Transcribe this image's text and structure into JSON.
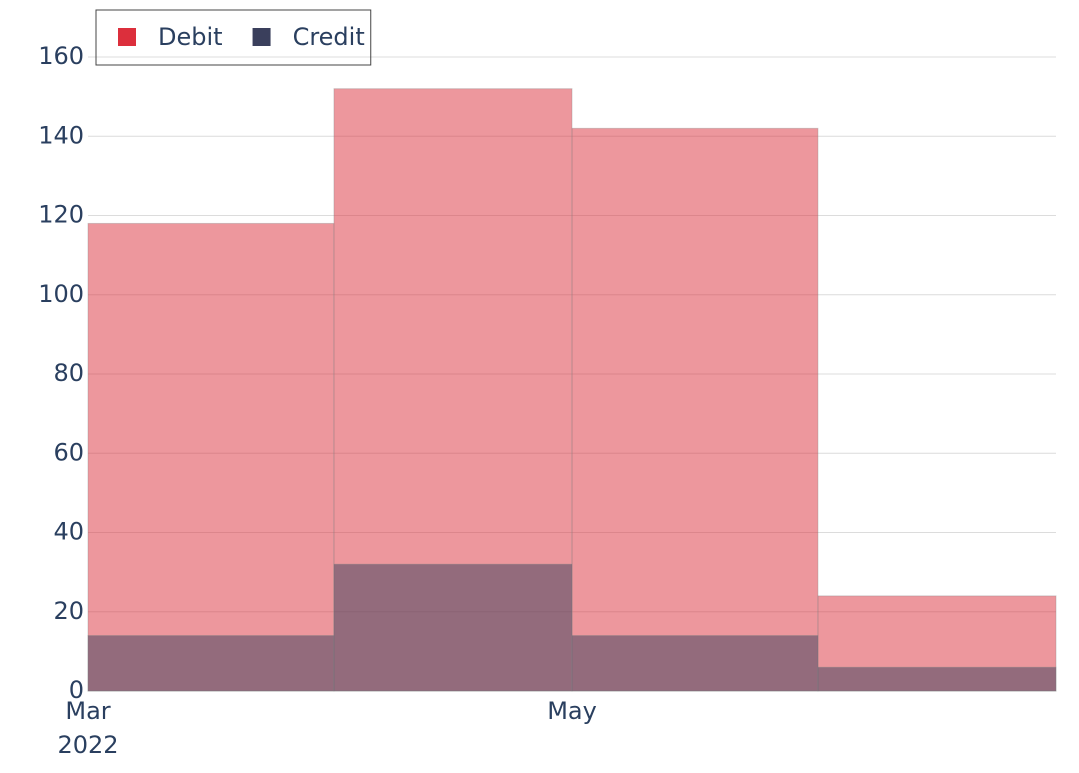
{
  "chart_data": {
    "type": "histogram",
    "bins": [
      "2022-03",
      "2022-04",
      "2022-05",
      "2022-06",
      "2022-07"
    ],
    "series": [
      {
        "name": "Debit",
        "color": "#dc2f3c",
        "values": [
          118,
          152,
          142,
          24
        ]
      },
      {
        "name": "Credit",
        "color": "#3a3f5c",
        "values": [
          14,
          32,
          14,
          6
        ]
      }
    ],
    "barmode": "overlay",
    "opacity": 0.5,
    "xlim": [
      "2022-03",
      "2022-07"
    ],
    "xticks": [
      {
        "value": "2022-03",
        "label": [
          "Mar",
          "2022"
        ]
      },
      {
        "value": "2022-05",
        "label": [
          "May"
        ]
      }
    ],
    "ylim": [
      0,
      160
    ],
    "yticks": [
      0,
      20,
      40,
      60,
      80,
      100,
      120,
      140,
      160
    ],
    "grid": true,
    "legend": "top-left"
  }
}
